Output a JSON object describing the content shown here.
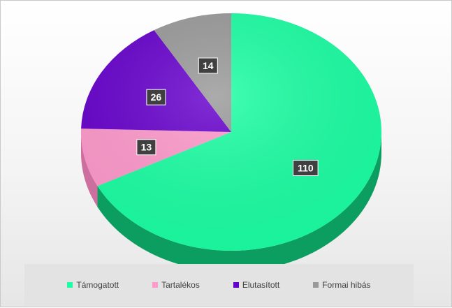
{
  "chart_data": {
    "type": "pie",
    "three_d": true,
    "categories": [
      "Támogatott",
      "Tartalékos",
      "Elutasított",
      "Formai hibás"
    ],
    "values": [
      110,
      13,
      26,
      14
    ],
    "colors": [
      "#1affa3",
      "#ff99cc",
      "#6600cc",
      "#999999"
    ],
    "dark_colors": [
      "#0b9e60",
      "#cc6f9e",
      "#44008a",
      "#6e6e6e"
    ],
    "data_labels": [
      "110",
      "13",
      "26",
      "14"
    ],
    "legend_position": "bottom",
    "start_angle": "12 o'clock",
    "direction": "clockwise"
  },
  "legend": {
    "items": [
      {
        "label": "Támogatott",
        "color": "#1affa3"
      },
      {
        "label": "Tartalékos",
        "color": "#ff99cc"
      },
      {
        "label": "Elutasított",
        "color": "#6600cc"
      },
      {
        "label": "Formai hibás",
        "color": "#999999"
      }
    ]
  }
}
